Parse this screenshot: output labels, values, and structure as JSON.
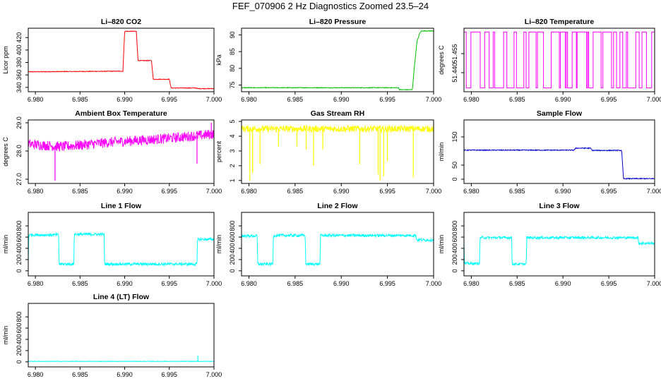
{
  "figure": {
    "title": "FEF_070906  2 Hz Diagnostics Zoomed 23.5–24"
  },
  "colors": {
    "red": "#ff0000",
    "green": "#00c000",
    "magenta": "#ff00ff",
    "yellow": "#ffff00",
    "blue": "#0000cc",
    "cyan": "#00ffff"
  },
  "chart_data": [
    {
      "type": "line",
      "title": "Li–820 CO2",
      "ylabel": "Licor ppm",
      "xlabel": "",
      "xlim": [
        6.9792,
        7.0
      ],
      "ylim": [
        333,
        435
      ],
      "xticks": [
        "6.980",
        "6.985",
        "6.990",
        "6.995",
        "7.000"
      ],
      "xtick_values": [
        6.98,
        6.985,
        6.99,
        6.995,
        7.0
      ],
      "yticks": [
        "340",
        "360",
        "380",
        "400",
        "420"
      ],
      "ytick_values": [
        340,
        360,
        380,
        400,
        420
      ],
      "color": "red",
      "noise": 0.5,
      "series": [
        {
          "x": [
            6.9792,
            6.9898,
            6.99,
            6.9913,
            6.9915,
            6.993,
            6.9932,
            6.995,
            6.9952,
            6.998,
            6.9982,
            7.0
          ],
          "y": [
            365,
            366,
            430,
            430,
            383,
            383,
            353,
            353,
            339,
            339,
            338,
            338
          ]
        }
      ]
    },
    {
      "type": "line",
      "title": "Li–820 Pressure",
      "ylabel": "kPa",
      "xlabel": "",
      "xlim": [
        6.9792,
        7.0
      ],
      "ylim": [
        73,
        92
      ],
      "xticks": [
        "6.980",
        "6.985",
        "6.990",
        "6.995",
        "7.000"
      ],
      "xtick_values": [
        6.98,
        6.985,
        6.99,
        6.995,
        7.0
      ],
      "yticks": [
        "75",
        "80",
        "85",
        "90"
      ],
      "ytick_values": [
        75,
        80,
        85,
        90
      ],
      "color": "green",
      "noise": 0.1,
      "series": [
        {
          "x": [
            6.9792,
            6.9962,
            6.9963,
            6.9977,
            6.9979,
            6.9982,
            6.9985,
            6.9987,
            7.0
          ],
          "y": [
            74.2,
            74.2,
            73.6,
            73.6,
            80,
            88,
            90.5,
            91.2,
            91.2
          ]
        }
      ]
    },
    {
      "type": "line",
      "title": "Li–820 Temperature",
      "ylabel": "degrees C",
      "xlabel": "",
      "xlim": [
        6.9792,
        7.0
      ],
      "ylim": [
        51.425,
        51.475
      ],
      "xticks": [
        "6.980",
        "6.985",
        "6.990",
        "6.995",
        "7.000"
      ],
      "xtick_values": [
        6.98,
        6.985,
        6.99,
        6.995,
        7.0
      ],
      "yticks": [
        "51.440",
        "51.455"
      ],
      "ytick_values": [
        51.44,
        51.455
      ],
      "color": "magenta",
      "series": [
        {
          "pattern": "binary-toggle",
          "low": 51.428,
          "high": 51.472,
          "x_start": 6.9792,
          "x_end": 7.0
        }
      ]
    },
    {
      "type": "line",
      "title": "Ambient Box Temperature",
      "ylabel": "degrees C",
      "xlabel": "",
      "xlim": [
        6.9792,
        7.0
      ],
      "ylim": [
        26.85,
        29.1
      ],
      "xticks": [
        "6.980",
        "6.985",
        "6.990",
        "6.995",
        "7.000"
      ],
      "xtick_values": [
        6.98,
        6.985,
        6.99,
        6.995,
        7.0
      ],
      "yticks": [
        "27.0",
        "28.0",
        "29.0"
      ],
      "ytick_values": [
        27.0,
        28.0,
        29.0
      ],
      "color": "magenta",
      "noise": 0.18,
      "series": [
        {
          "x": [
            6.9792,
            6.983,
            6.988,
            6.995,
            7.0
          ],
          "y": [
            28.25,
            28.15,
            28.3,
            28.45,
            28.6
          ]
        }
      ],
      "spikes": [
        {
          "x": 6.9822,
          "y": 26.95
        },
        {
          "x": 6.9981,
          "y": 27.55
        },
        {
          "x": 6.9997,
          "y": 29.0
        }
      ]
    },
    {
      "type": "line",
      "title": "Gas Stream RH",
      "ylabel": "percent",
      "xlabel": "",
      "xlim": [
        6.9792,
        7.0
      ],
      "ylim": [
        0.8,
        5.1
      ],
      "xticks": [
        "6.980",
        "6.985",
        "6.990",
        "6.995",
        "7.000"
      ],
      "xtick_values": [
        6.98,
        6.985,
        6.99,
        6.995,
        7.0
      ],
      "yticks": [
        "1",
        "2",
        "3",
        "4",
        "5"
      ],
      "ytick_values": [
        1,
        2,
        3,
        4,
        5
      ],
      "color": "yellow",
      "noise": 0.22,
      "series": [
        {
          "x": [
            6.9792,
            7.0
          ],
          "y": [
            4.5,
            4.5
          ]
        }
      ],
      "spikes": [
        {
          "x": 6.9801,
          "y": 1.0
        },
        {
          "x": 6.9804,
          "y": 1.5
        },
        {
          "x": 6.9812,
          "y": 2.1
        },
        {
          "x": 6.9832,
          "y": 3.3
        },
        {
          "x": 6.9852,
          "y": 3.3
        },
        {
          "x": 6.9862,
          "y": 3.1
        },
        {
          "x": 6.987,
          "y": 2.0
        },
        {
          "x": 6.988,
          "y": 3.1
        },
        {
          "x": 6.992,
          "y": 2.1
        },
        {
          "x": 6.994,
          "y": 1.4
        },
        {
          "x": 6.9942,
          "y": 1.0
        },
        {
          "x": 6.9946,
          "y": 1.3
        },
        {
          "x": 6.995,
          "y": 2.3
        },
        {
          "x": 6.9978,
          "y": 1.2
        }
      ]
    },
    {
      "type": "line",
      "title": "Sample Flow",
      "ylabel": "ml/min",
      "xlabel": "",
      "xlim": [
        6.9792,
        7.0
      ],
      "ylim": [
        -15,
        210
      ],
      "xticks": [
        "6.980",
        "6.985",
        "6.990",
        "6.995",
        "7.000"
      ],
      "xtick_values": [
        6.98,
        6.985,
        6.99,
        6.995,
        7.0
      ],
      "yticks": [
        "0",
        "50",
        "150"
      ],
      "ytick_values": [
        0,
        50,
        150
      ],
      "color": "blue",
      "noise": 1.5,
      "series": [
        {
          "x": [
            6.9792,
            6.9912,
            6.9914,
            6.993,
            6.9932,
            6.9964,
            6.9966,
            7.0
          ],
          "y": [
            103,
            103,
            110,
            110,
            102,
            102,
            2,
            2
          ]
        }
      ]
    },
    {
      "type": "line",
      "title": "Line 1 Flow",
      "ylabel": "ml/min",
      "xlabel": "",
      "xlim": [
        6.9792,
        7.0
      ],
      "ylim": [
        -90,
        1040
      ],
      "xticks": [
        "6.980",
        "6.985",
        "6.990",
        "6.995",
        "7.000"
      ],
      "xtick_values": [
        6.98,
        6.985,
        6.99,
        6.995,
        7.0
      ],
      "yticks": [
        "0",
        "200",
        "400",
        "600",
        "800"
      ],
      "ytick_values": [
        0,
        200,
        400,
        600,
        800
      ],
      "color": "cyan",
      "noise": 25,
      "series": [
        {
          "x": [
            6.9792,
            6.97925,
            6.9826,
            6.98265,
            6.9843,
            6.98435,
            6.9877,
            6.98775,
            6.9981,
            6.99815,
            7.0
          ],
          "y": [
            130,
            640,
            640,
            120,
            120,
            650,
            650,
            120,
            120,
            560,
            560
          ]
        }
      ]
    },
    {
      "type": "line",
      "title": "Line 2 Flow",
      "ylabel": "ml/min",
      "xlabel": "",
      "xlim": [
        6.9792,
        7.0
      ],
      "ylim": [
        -90,
        1040
      ],
      "xticks": [
        "6.980",
        "6.985",
        "6.990",
        "6.995",
        "7.000"
      ],
      "xtick_values": [
        6.98,
        6.985,
        6.99,
        6.995,
        7.0
      ],
      "yticks": [
        "0",
        "200",
        "400",
        "600",
        "800"
      ],
      "ytick_values": [
        0,
        200,
        400,
        600,
        800
      ],
      "color": "cyan",
      "noise": 25,
      "series": [
        {
          "x": [
            6.9792,
            6.9809,
            6.98095,
            6.9826,
            6.98265,
            6.9861,
            6.98615,
            6.9877,
            6.98775,
            6.9981,
            6.99815,
            7.0
          ],
          "y": [
            620,
            620,
            120,
            120,
            630,
            630,
            120,
            120,
            630,
            630,
            550,
            550
          ]
        }
      ]
    },
    {
      "type": "line",
      "title": "Line 3 Flow",
      "ylabel": "ml/min",
      "xlabel": "",
      "xlim": [
        6.9792,
        7.0
      ],
      "ylim": [
        -90,
        1040
      ],
      "xticks": [
        "6.980",
        "6.985",
        "6.990",
        "6.995",
        "7.000"
      ],
      "xtick_values": [
        6.98,
        6.985,
        6.99,
        6.995,
        7.0
      ],
      "yticks": [
        "0",
        "200",
        "400",
        "600",
        "800"
      ],
      "ytick_values": [
        0,
        200,
        400,
        600,
        800
      ],
      "color": "cyan",
      "noise": 22,
      "series": [
        {
          "x": [
            6.9792,
            6.97925,
            6.9795,
            6.97955,
            6.9809,
            6.98095,
            6.9844,
            6.98445,
            6.986,
            6.98605,
            6.9982,
            6.99825,
            7.0
          ],
          "y": [
            540,
            130,
            130,
            130,
            130,
            590,
            590,
            120,
            120,
            590,
            590,
            490,
            490
          ]
        }
      ]
    },
    {
      "type": "line",
      "title": "Line 4 (LT) Flow",
      "ylabel": "ml/min",
      "xlabel": "",
      "xlim": [
        6.9792,
        7.0
      ],
      "ylim": [
        -90,
        1040
      ],
      "xticks": [
        "6.980",
        "6.985",
        "6.990",
        "6.995",
        "7.000"
      ],
      "xtick_values": [
        6.98,
        6.985,
        6.99,
        6.995,
        7.0
      ],
      "yticks": [
        "0",
        "200",
        "400",
        "600",
        "800"
      ],
      "ytick_values": [
        0,
        200,
        400,
        600,
        800
      ],
      "color": "cyan",
      "noise": 4,
      "series": [
        {
          "x": [
            6.9792,
            7.0
          ],
          "y": [
            8,
            8
          ]
        }
      ],
      "spikes": [
        {
          "x": 6.9982,
          "y": 110
        }
      ]
    }
  ]
}
